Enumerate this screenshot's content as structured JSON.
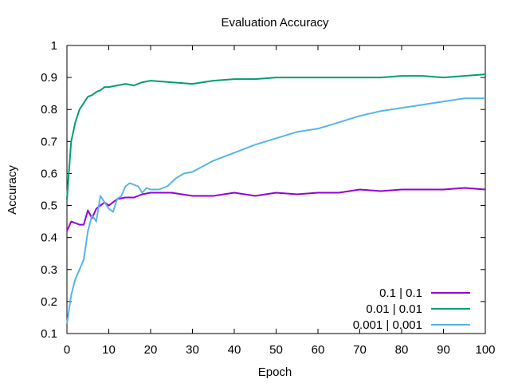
{
  "chart_data": {
    "type": "line",
    "title": "Evaluation Accuracy",
    "xlabel": "Epoch",
    "ylabel": "Accuracy",
    "xlim": [
      0,
      100
    ],
    "ylim": [
      0.1,
      1.0
    ],
    "xticks": [
      "0",
      "10",
      "20",
      "30",
      "40",
      "50",
      "60",
      "70",
      "80",
      "90",
      "100"
    ],
    "yticks": [
      "0.1",
      "0.2",
      "0.3",
      "0.4",
      "0.5",
      "0.6",
      "0.7",
      "0.8",
      "0.9",
      "1"
    ],
    "grid": false,
    "legend_position": "bottom-right",
    "series": [
      {
        "name": "0.1 | 0.1",
        "color": "#9400d3",
        "x": [
          0,
          1,
          2,
          3,
          4,
          5,
          6,
          7,
          8,
          9,
          10,
          12,
          14,
          16,
          18,
          20,
          25,
          30,
          35,
          40,
          45,
          50,
          55,
          60,
          65,
          70,
          75,
          80,
          85,
          90,
          95,
          100
        ],
        "y": [
          0.42,
          0.45,
          0.445,
          0.44,
          0.44,
          0.485,
          0.46,
          0.49,
          0.5,
          0.51,
          0.5,
          0.52,
          0.525,
          0.525,
          0.535,
          0.54,
          0.54,
          0.53,
          0.53,
          0.54,
          0.53,
          0.54,
          0.535,
          0.54,
          0.54,
          0.55,
          0.545,
          0.55,
          0.55,
          0.55,
          0.555,
          0.55
        ]
      },
      {
        "name": "0.01 | 0.01",
        "color": "#009e73",
        "x": [
          0,
          1,
          2,
          3,
          4,
          5,
          6,
          7,
          8,
          9,
          10,
          12,
          14,
          16,
          18,
          20,
          25,
          30,
          35,
          40,
          45,
          50,
          55,
          60,
          65,
          70,
          75,
          80,
          85,
          90,
          95,
          100
        ],
        "y": [
          0.52,
          0.7,
          0.76,
          0.8,
          0.82,
          0.84,
          0.845,
          0.855,
          0.86,
          0.87,
          0.87,
          0.875,
          0.88,
          0.875,
          0.885,
          0.89,
          0.885,
          0.88,
          0.89,
          0.895,
          0.895,
          0.9,
          0.9,
          0.9,
          0.9,
          0.9,
          0.9,
          0.905,
          0.905,
          0.9,
          0.905,
          0.91
        ]
      },
      {
        "name": "0.001 | 0.001",
        "color": "#56b4e9",
        "x": [
          0,
          1,
          2,
          3,
          4,
          5,
          6,
          7,
          8,
          9,
          10,
          11,
          12,
          13,
          14,
          15,
          16,
          17,
          18,
          19,
          20,
          22,
          24,
          26,
          28,
          30,
          35,
          40,
          45,
          50,
          55,
          60,
          65,
          70,
          75,
          80,
          85,
          90,
          95,
          100
        ],
        "y": [
          0.13,
          0.22,
          0.27,
          0.3,
          0.33,
          0.42,
          0.47,
          0.45,
          0.53,
          0.51,
          0.49,
          0.48,
          0.52,
          0.53,
          0.56,
          0.57,
          0.565,
          0.56,
          0.54,
          0.555,
          0.55,
          0.55,
          0.56,
          0.585,
          0.6,
          0.605,
          0.64,
          0.665,
          0.69,
          0.71,
          0.73,
          0.74,
          0.76,
          0.78,
          0.795,
          0.805,
          0.815,
          0.825,
          0.835,
          0.835
        ]
      }
    ]
  }
}
